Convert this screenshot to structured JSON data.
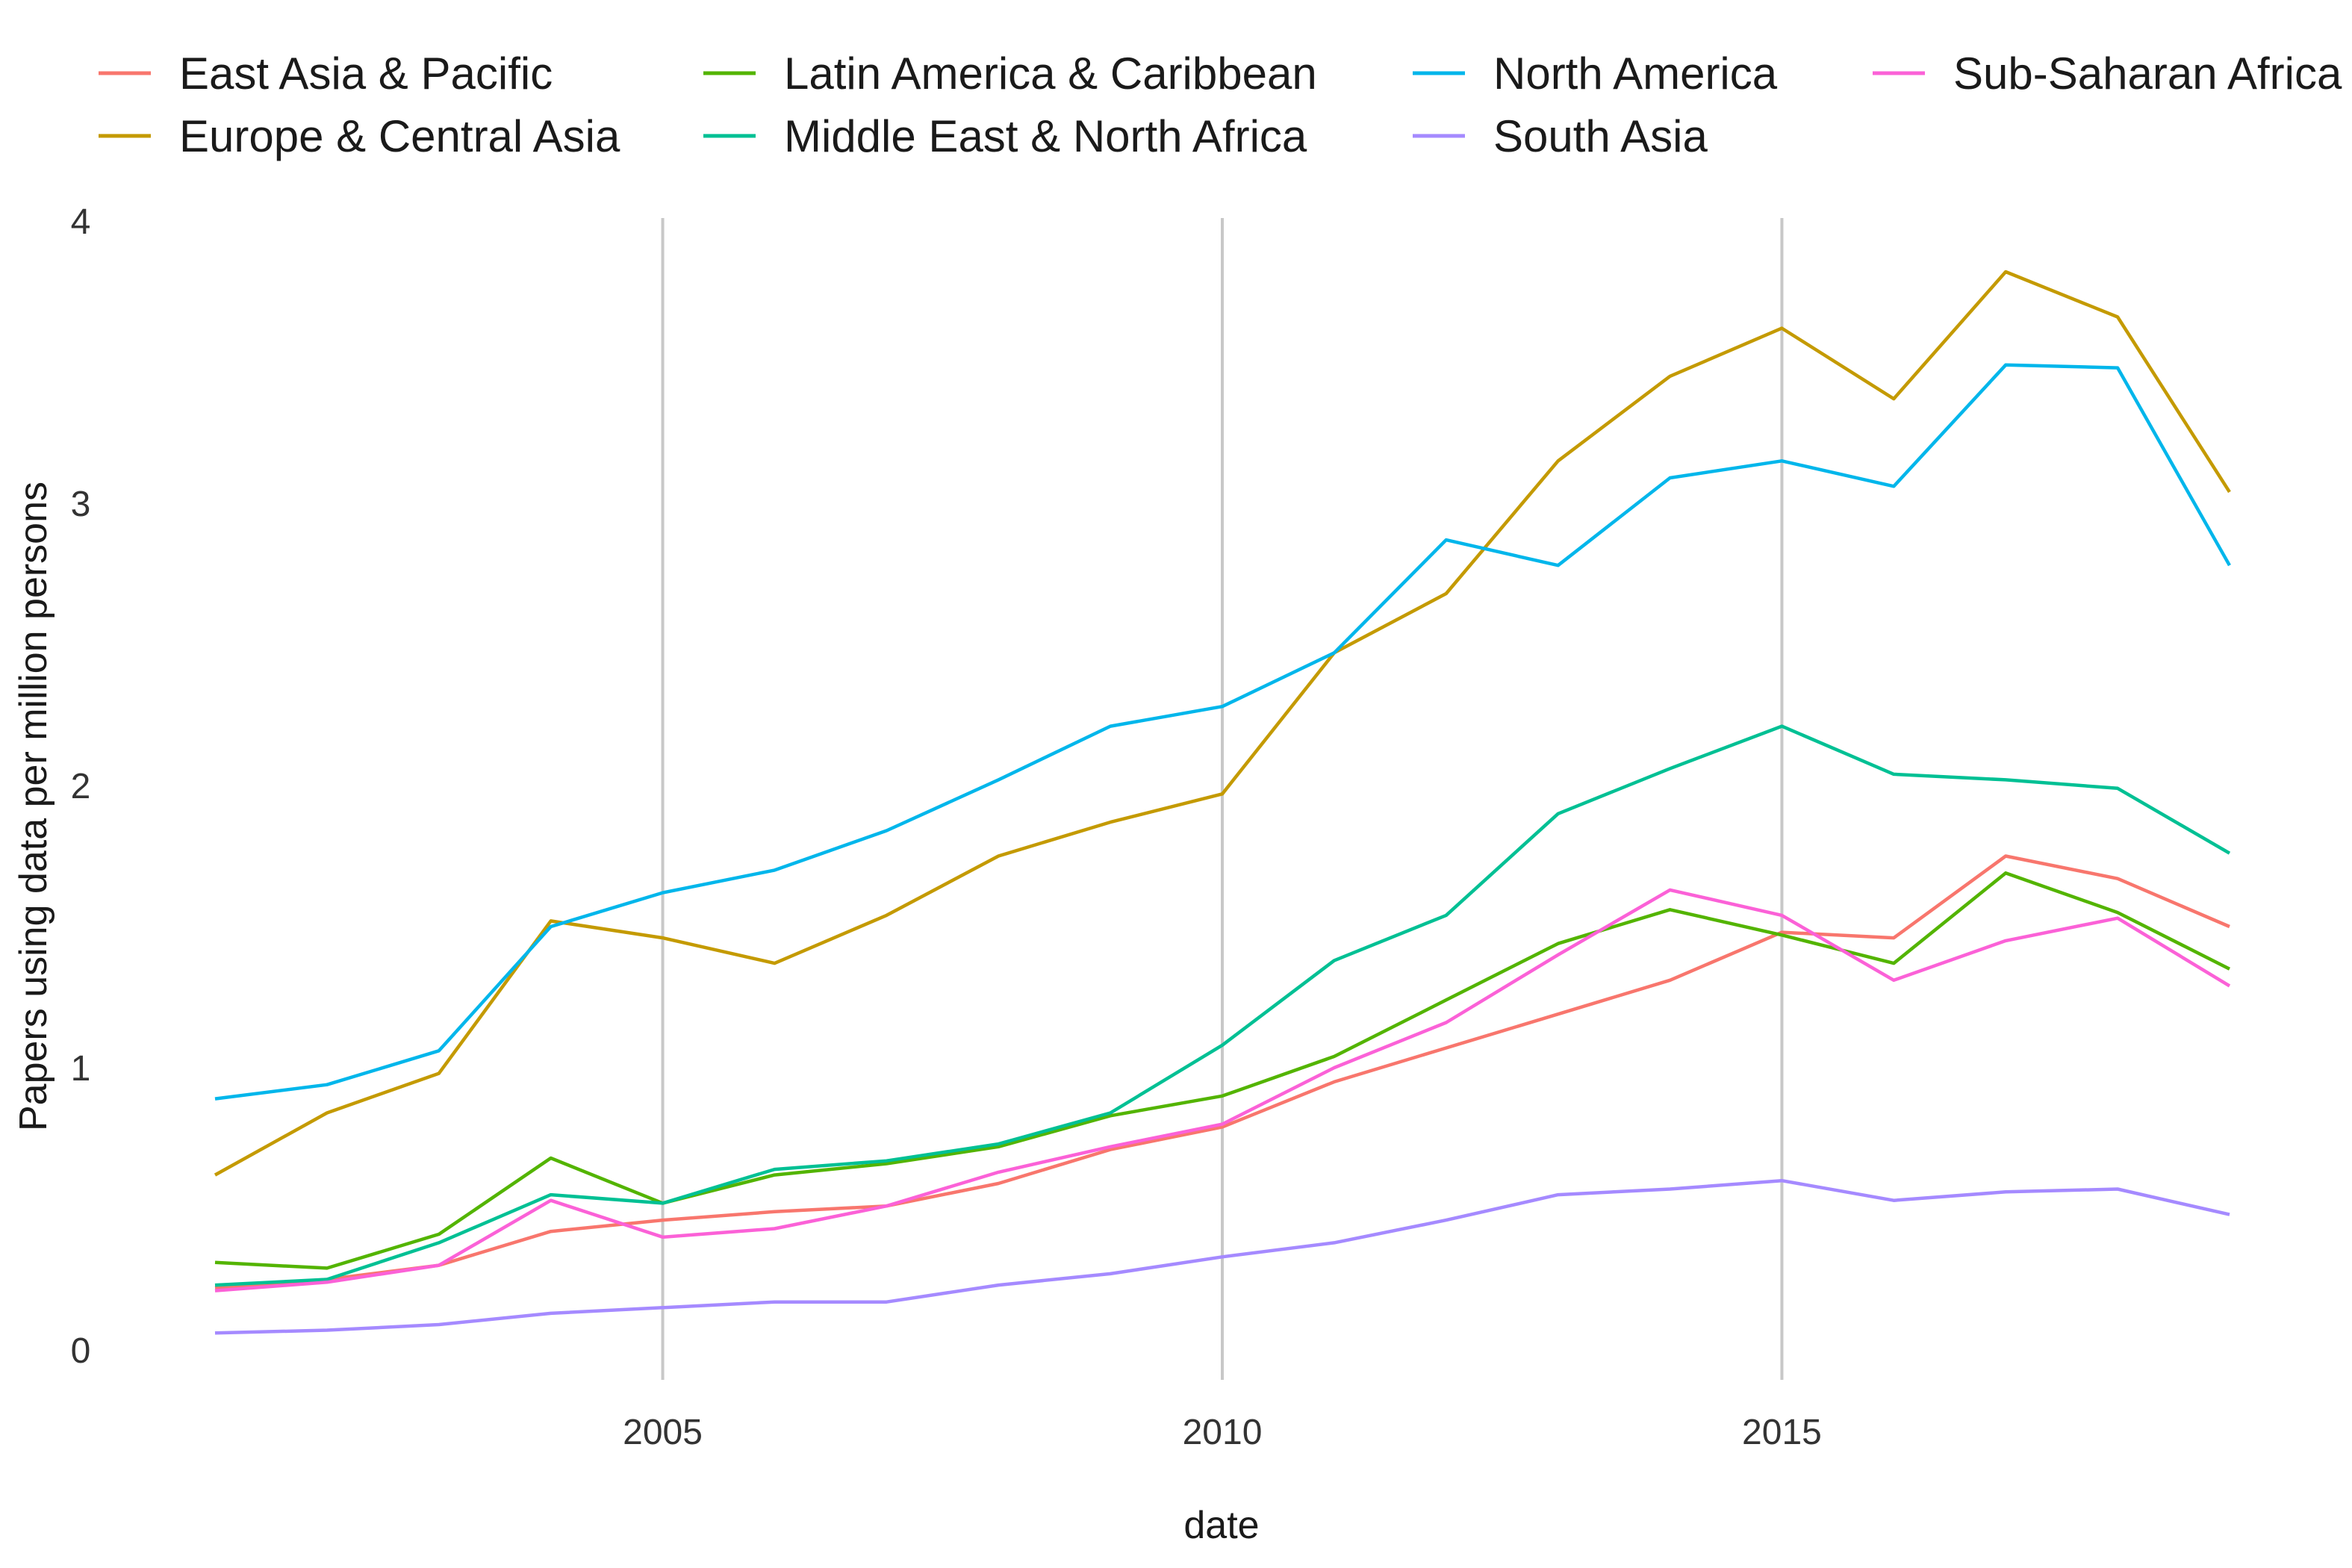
{
  "colors": {
    "East Asia & Pacific": "#F8766D",
    "Europe & Central Asia": "#C49A00",
    "Latin America & Caribbean": "#53B400",
    "Middle East & North Africa": "#00C094",
    "North America": "#00B6EB",
    "South Asia": "#A58AFF",
    "Sub-Saharan Africa": "#FB61D7"
  },
  "chart_data": {
    "type": "line",
    "title": "",
    "xlabel": "date",
    "ylabel": "Papers using data per million persons",
    "xlim": [
      2001,
      2019
    ],
    "ylim": [
      0,
      4
    ],
    "x_ticks": [
      "2005",
      "2010",
      "2015"
    ],
    "y_ticks": [
      "0",
      "1",
      "2",
      "3",
      "4"
    ],
    "grid": "vertical major lines only",
    "legend_position": "top",
    "x": [
      2001,
      2002,
      2003,
      2004,
      2005,
      2006,
      2007,
      2008,
      2009,
      2010,
      2011,
      2012,
      2013,
      2014,
      2015,
      2016,
      2017,
      2018,
      2019
    ],
    "series": [
      {
        "name": "East Asia & Pacific",
        "values": [
          0.22,
          0.25,
          0.3,
          0.42,
          0.46,
          0.49,
          0.51,
          0.59,
          0.71,
          0.79,
          0.95,
          1.07,
          1.19,
          1.31,
          1.48,
          1.46,
          1.75,
          1.67,
          1.5
        ]
      },
      {
        "name": "Europe & Central Asia",
        "values": [
          0.62,
          0.84,
          0.98,
          1.52,
          1.46,
          1.37,
          1.54,
          1.75,
          1.87,
          1.97,
          2.47,
          2.68,
          3.15,
          3.45,
          3.62,
          3.37,
          3.82,
          3.66,
          3.04
        ]
      },
      {
        "name": "Latin America & Caribbean",
        "values": [
          0.31,
          0.29,
          0.41,
          0.68,
          0.52,
          0.62,
          0.66,
          0.72,
          0.83,
          0.9,
          1.04,
          1.24,
          1.44,
          1.56,
          1.47,
          1.37,
          1.69,
          1.55,
          1.35
        ]
      },
      {
        "name": "Middle East & North Africa",
        "values": [
          0.23,
          0.25,
          0.38,
          0.55,
          0.52,
          0.64,
          0.67,
          0.73,
          0.84,
          1.08,
          1.38,
          1.54,
          1.9,
          2.06,
          2.21,
          2.04,
          2.02,
          1.99,
          1.76
        ]
      },
      {
        "name": "North America",
        "values": [
          0.89,
          0.94,
          1.06,
          1.5,
          1.62,
          1.7,
          1.84,
          2.02,
          2.21,
          2.28,
          2.47,
          2.87,
          2.78,
          3.09,
          3.15,
          3.06,
          3.49,
          3.48,
          2.78
        ]
      },
      {
        "name": "South Asia",
        "values": [
          0.06,
          0.07,
          0.09,
          0.13,
          0.15,
          0.17,
          0.17,
          0.23,
          0.27,
          0.33,
          0.38,
          0.46,
          0.55,
          0.57,
          0.6,
          0.53,
          0.56,
          0.57,
          0.48
        ]
      },
      {
        "name": "Sub-Saharan Africa",
        "values": [
          0.21,
          0.24,
          0.3,
          0.53,
          0.4,
          0.43,
          0.51,
          0.63,
          0.72,
          0.8,
          1.0,
          1.16,
          1.4,
          1.63,
          1.54,
          1.31,
          1.45,
          1.53,
          1.29
        ]
      }
    ]
  }
}
